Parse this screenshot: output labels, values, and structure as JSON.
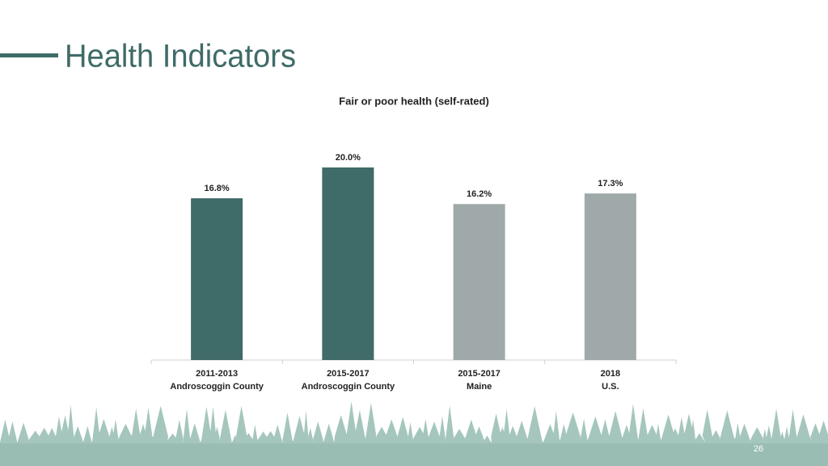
{
  "slide_title": "Health Indicators",
  "page_number": "26",
  "chart_data": {
    "type": "bar",
    "title": "Fair or poor health (self-rated)",
    "categories": [
      [
        "2011-2013",
        "Androscoggin County"
      ],
      [
        "2015-2017",
        "Androscoggin County"
      ],
      [
        "2015-2017",
        "Maine"
      ],
      [
        "2018",
        "U.S."
      ]
    ],
    "values": [
      16.8,
      20.0,
      16.2,
      17.3
    ],
    "value_labels": [
      "16.8%",
      "20.0%",
      "16.2%",
      "17.3%"
    ],
    "colors": [
      "#3f6b68",
      "#3f6b68",
      "#a0a9a9",
      "#a0a9a9"
    ],
    "ylim": [
      0,
      20
    ]
  }
}
